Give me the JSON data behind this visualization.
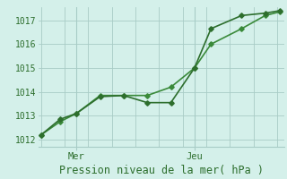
{
  "xlabel": "Pression niveau de la mer( hPa )",
  "bg_color": "#d4f0ea",
  "grid_color": "#a8ccc6",
  "line_color1": "#2d6e2d",
  "line_color2": "#3a8a3a",
  "ylim": [
    1011.7,
    1017.55
  ],
  "xlim": [
    -0.1,
    10.3
  ],
  "series1_x": [
    0,
    0.8,
    1.5,
    2.5,
    3.5,
    4.5,
    5.5,
    6.5,
    7.2,
    8.5,
    9.5,
    10.1
  ],
  "series1_y": [
    1012.2,
    1012.85,
    1013.1,
    1013.8,
    1013.85,
    1013.55,
    1013.55,
    1015.0,
    1016.65,
    1017.2,
    1017.3,
    1017.4
  ],
  "series2_x": [
    0,
    0.8,
    1.5,
    2.5,
    3.5,
    4.5,
    5.5,
    6.5,
    7.2,
    8.5,
    9.5,
    10.1
  ],
  "series2_y": [
    1012.2,
    1012.75,
    1013.1,
    1013.85,
    1013.85,
    1013.85,
    1014.2,
    1015.0,
    1016.0,
    1016.65,
    1017.2,
    1017.35
  ],
  "xtick_positions": [
    1.5,
    6.5
  ],
  "xtick_labels": [
    "Mer",
    "Jeu"
  ],
  "ytick_positions": [
    1012,
    1013,
    1014,
    1015,
    1016,
    1017
  ],
  "ytick_labels": [
    "1012",
    "1013",
    "1014",
    "1015",
    "1016",
    "1017"
  ],
  "n_xgrid": 11,
  "marker": "D",
  "markersize": 2.8,
  "linewidth": 1.2,
  "font_color": "#2d6e2d",
  "tick_fontsize": 7,
  "label_fontsize": 8.5
}
